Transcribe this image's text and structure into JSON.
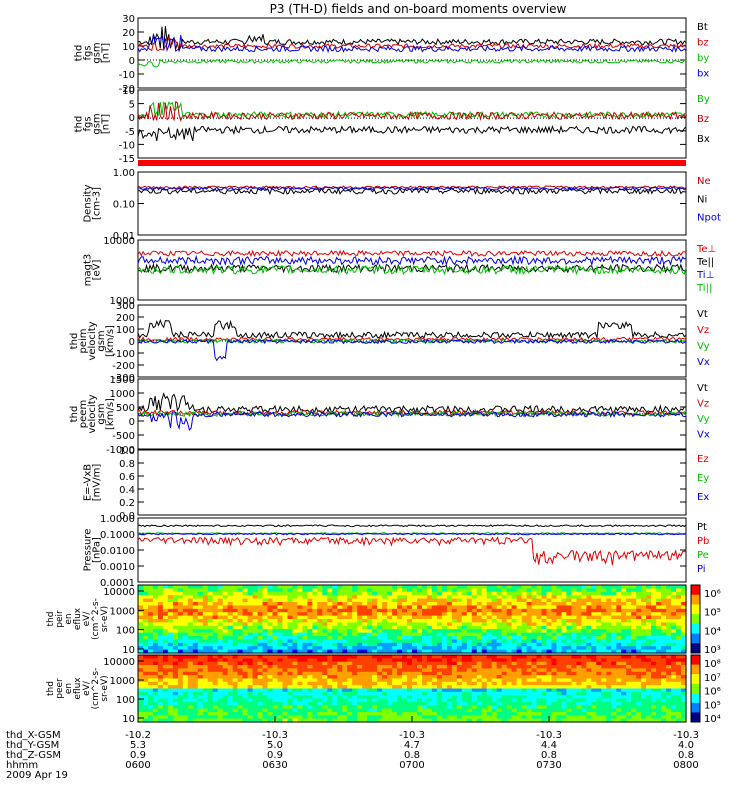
{
  "title": "P3 (TH-D) fields and on-board moments overview",
  "chart_data": {
    "type": "line",
    "x_ticks": [
      "0600",
      "0630",
      "0700",
      "0730",
      "0800"
    ],
    "x_range": [
      "0600",
      "0800"
    ],
    "ephemeris": [
      {
        "label": "thd_X-GSM",
        "values": [
          "-10.2",
          "-10.3",
          "-10.3",
          "-10.3",
          "-10.3"
        ]
      },
      {
        "label": "thd_Y-GSM",
        "values": [
          "5.3",
          "5.0",
          "4.7",
          "4.4",
          "4.0"
        ]
      },
      {
        "label": "thd_Z-GSM",
        "values": [
          "0.9",
          "0.9",
          "0.8",
          "0.8",
          "0.8"
        ]
      },
      {
        "label": "hhmm",
        "values": [
          "0600",
          "0630",
          "0700",
          "0730",
          "0800"
        ]
      }
    ],
    "date": "2009 Apr 19",
    "panels": [
      {
        "id": "fgs-mag",
        "ylabel": [
          "thd",
          "fgs",
          "gsm",
          "[nT]"
        ],
        "ylim": [
          -20,
          30
        ],
        "yticks": [
          "30",
          "20",
          "10",
          "0",
          "-10",
          "-20"
        ],
        "series": [
          {
            "name": "Bt",
            "color": "#000000",
            "base": 13,
            "var": 2,
            "sub": [
              {
                "t": [
                  0.02,
                  0.08
                ],
                "v": 15,
                "n": 10
              },
              {
                "t": [
                  0.2,
                  0.23
                ],
                "v": 16,
                "n": 3
              }
            ]
          },
          {
            "name": "bz",
            "color": "#d00000",
            "base": 10,
            "var": 1.5,
            "sub": [
              {
                "t": [
                  0.02,
                  0.08
                ],
                "v": 12,
                "n": 6
              }
            ]
          },
          {
            "name": "by",
            "color": "#00c000",
            "base": -1,
            "var": 1.2,
            "sub": [
              {
                "t": [
                  0.0,
                  0.04
                ],
                "v": -3,
                "n": 2
              }
            ]
          },
          {
            "name": "bx",
            "color": "#0000e0",
            "base": 8,
            "var": 2,
            "sub": [
              {
                "t": [
                  0.02,
                  0.08
                ],
                "v": 12,
                "n": 6
              }
            ]
          }
        ]
      },
      {
        "id": "fgs-comp",
        "ylabel": [
          "thd",
          "fgs",
          "gsm",
          "[nT]"
        ],
        "ylim": [
          -17,
          12
        ],
        "yticks": [
          "10",
          "5",
          "0",
          "-5",
          "-10",
          "-15"
        ],
        "series": [
          {
            "name": "By",
            "color": "#00c000",
            "base": 1.5,
            "var": 1.2,
            "sub": [
              {
                "t": [
                  0.02,
                  0.08
                ],
                "v": 4,
                "n": 3
              }
            ]
          },
          {
            "name": "Bz",
            "color": "#c00000",
            "base": 1,
            "var": 1.5,
            "sub": [
              {
                "t": [
                  0.02,
                  0.08
                ],
                "v": 3,
                "n": 4
              }
            ]
          },
          {
            "name": "Bx",
            "color": "#000000",
            "base": -5,
            "var": 1.5,
            "sub": [
              {
                "t": [
                  0.0,
                  0.1
                ],
                "v": -7,
                "n": 3
              }
            ]
          }
        ]
      },
      {
        "id": "density",
        "ylabel": [
          "Density",
          "[cm-3]"
        ],
        "ylim": [
          0.01,
          1.0
        ],
        "log": true,
        "yticks": [
          "1.00",
          "0.10",
          "0.01"
        ],
        "series": [
          {
            "name": "Ne",
            "color": "#c00000",
            "base": 0.33,
            "var": 0.03,
            "sub": []
          },
          {
            "name": "Ni",
            "color": "#000000",
            "base": 0.25,
            "var": 0.05,
            "sub": []
          },
          {
            "name": "Npot",
            "color": "#0000e0",
            "base": 0.3,
            "var": 0.03,
            "sub": []
          }
        ]
      },
      {
        "id": "temperature",
        "ylabel": [
          "magt3",
          "[eV]"
        ],
        "ylim": [
          1000,
          10000
        ],
        "log": true,
        "yticks": [
          "10000",
          "1000"
        ],
        "series": [
          {
            "name": "Te⊥",
            "color": "#e00000",
            "base": 6000,
            "var": 600,
            "sub": []
          },
          {
            "name": "Te||",
            "color": "#000000",
            "base": 3400,
            "var": 500,
            "sub": []
          },
          {
            "name": "Ti⊥",
            "color": "#0000e0",
            "base": 4600,
            "var": 700,
            "sub": []
          },
          {
            "name": "Ti||",
            "color": "#00c000",
            "base": 3200,
            "var": 500,
            "sub": []
          }
        ]
      },
      {
        "id": "ion-velocity",
        "ylabel": [
          "thd",
          "peim",
          "velocity",
          "gsm",
          "[km/s]"
        ],
        "ylim": [
          -300,
          300
        ],
        "yticks": [
          "300",
          "200",
          "100",
          "0",
          "-100",
          "-200",
          "-300"
        ],
        "series": [
          {
            "name": "Vt",
            "color": "#000000",
            "base": 50,
            "var": 25,
            "sub": [
              {
                "t": [
                  0.02,
                  0.06
                ],
                "v": 150,
                "n": 40
              },
              {
                "t": [
                  0.14,
                  0.18
                ],
                "v": 130,
                "n": 40
              },
              {
                "t": [
                  0.84,
                  0.9
                ],
                "v": 130,
                "n": 30
              }
            ]
          },
          {
            "name": "Vz",
            "color": "#e00000",
            "base": 15,
            "var": 15,
            "sub": []
          },
          {
            "name": "Vy",
            "color": "#00c000",
            "base": 0,
            "var": 15,
            "sub": []
          },
          {
            "name": "Vx",
            "color": "#0000e0",
            "base": -5,
            "var": 15,
            "sub": [
              {
                "t": [
                  0.14,
                  0.16
                ],
                "v": -150,
                "n": 30
              }
            ]
          }
        ]
      },
      {
        "id": "electron-velocity",
        "ylabel": [
          "thd",
          "peem",
          "velocity",
          "gsm",
          "[km/s]"
        ],
        "ylim": [
          -1500,
          1500
        ],
        "yticks": [
          "1500",
          "1000",
          "500",
          "0",
          "-500",
          "-1000"
        ],
        "series": [
          {
            "name": "Vt",
            "color": "#000000",
            "base": 200,
            "var": 150,
            "sub": [
              {
                "t": [
                  0.02,
                  0.1
                ],
                "v": 500,
                "n": 400
              }
            ]
          },
          {
            "name": "Vz",
            "color": "#e00000",
            "base": 50,
            "var": 100,
            "sub": []
          },
          {
            "name": "Vy",
            "color": "#00c000",
            "base": 0,
            "var": 100,
            "sub": []
          },
          {
            "name": "Vx",
            "color": "#0000e0",
            "base": -20,
            "var": 100,
            "sub": [
              {
                "t": [
                  0.02,
                  0.1
                ],
                "v": -300,
                "n": 400
              }
            ]
          }
        ]
      },
      {
        "id": "electric-field",
        "ylabel": [
          "E=-VxB",
          "[mV/m]"
        ],
        "ylim": [
          0.0,
          1.0
        ],
        "yticks": [
          "1.0",
          "0.8",
          "0.6",
          "0.4",
          "0.2",
          "0.0"
        ],
        "series": [
          {
            "name": "Ez",
            "color": "#e00000",
            "hidden": true
          },
          {
            "name": "Ey",
            "color": "#00c000",
            "hidden": true
          },
          {
            "name": "Ex",
            "color": "#0000e0",
            "hidden": true
          }
        ]
      },
      {
        "id": "pressure",
        "ylabel": [
          "Pressure",
          "[nPa]"
        ],
        "ylim": [
          0.0001,
          1.0
        ],
        "log": true,
        "yticks": [
          "1.0000",
          "0.1000",
          "0.0100",
          "0.0010",
          "0.0001"
        ],
        "series": [
          {
            "name": "Pt",
            "color": "#000000",
            "base": 0.33,
            "var": 0.04,
            "sub": []
          },
          {
            "name": "Pb",
            "color": "#e00000",
            "base": 0.04,
            "var": 0.02,
            "sub": [
              {
                "t": [
                  0.72,
                  1.0
                ],
                "v": 0.005,
                "n": 0.004
              }
            ]
          },
          {
            "name": "Pe",
            "color": "#00c000",
            "base": 0.11,
            "var": 0.01,
            "sub": []
          },
          {
            "name": "Pi",
            "color": "#0000e0",
            "base": 0.1,
            "var": 0.01,
            "sub": []
          }
        ]
      }
    ],
    "spectrograms": [
      {
        "id": "ion-spectrogram",
        "ylabel": [
          "thd",
          "peir",
          "en",
          "eflux",
          "eV/",
          "(cm^2-s-",
          "sr-eV)"
        ],
        "ylim": [
          10,
          20000
        ],
        "log": true,
        "yticks": [
          "10000",
          "1000",
          "100",
          "10"
        ],
        "colorbar": [
          "10⁶",
          "10⁵",
          "10⁴",
          "10³"
        ]
      },
      {
        "id": "electron-spectrogram",
        "ylabel": [
          "thd",
          "peer",
          "en",
          "eflux",
          "eV/",
          "(cm^2-s-",
          "sr-eV)"
        ],
        "ylim": [
          10,
          20000
        ],
        "log": true,
        "yticks": [
          "10000",
          "1000",
          "100",
          "10"
        ],
        "colorbar": [
          "10⁸",
          "10⁷",
          "10⁶",
          "10⁵",
          "10⁴"
        ]
      }
    ]
  }
}
